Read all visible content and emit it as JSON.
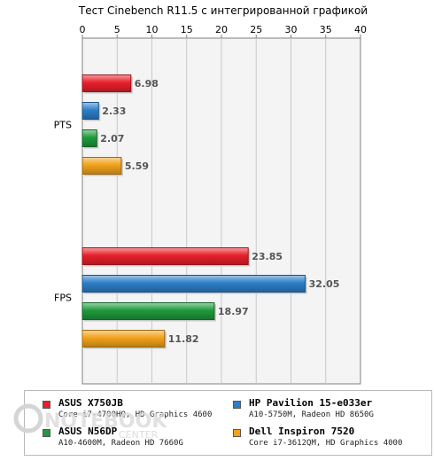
{
  "chart_data": {
    "type": "bar",
    "orientation": "horizontal",
    "title": "Тест Cinebench R11.5 с интегрированной графикой",
    "xlim": [
      0,
      40
    ],
    "xticks": [
      0,
      5,
      10,
      15,
      20,
      25,
      30,
      35,
      40
    ],
    "grid": true,
    "categories": [
      "PTS",
      "FPS"
    ],
    "series": [
      {
        "name": "ASUS X750JB",
        "description": "Core i7-4700HQ, HD Graphics 4600",
        "color": "#e8202a",
        "values": [
          6.98,
          23.85
        ]
      },
      {
        "name": "HP Pavilion 15-e033er",
        "description": "A10-5750M, Radeon HD 8650G",
        "color": "#2d7fc9",
        "values": [
          2.33,
          32.05
        ]
      },
      {
        "name": "ASUS N56DP",
        "description": "A10-4600M, Radeon HD 7660G",
        "color": "#1f9a3c",
        "values": [
          2.07,
          18.97
        ]
      },
      {
        "name": "Dell Inspiron 7520",
        "description": "Core i7-3612QM, HD Graphics 4000",
        "color": "#f2a21b",
        "values": [
          5.59,
          11.82
        ]
      }
    ],
    "value_labels": [
      [
        "6.98",
        "2.33",
        "2.07",
        "5.59"
      ],
      [
        "23.85",
        "32.05",
        "18.97",
        "11.82"
      ]
    ],
    "legend_position": "bottom"
  },
  "watermark": {
    "line1": "NOTEBOOK",
    "line2": "CENTER"
  }
}
